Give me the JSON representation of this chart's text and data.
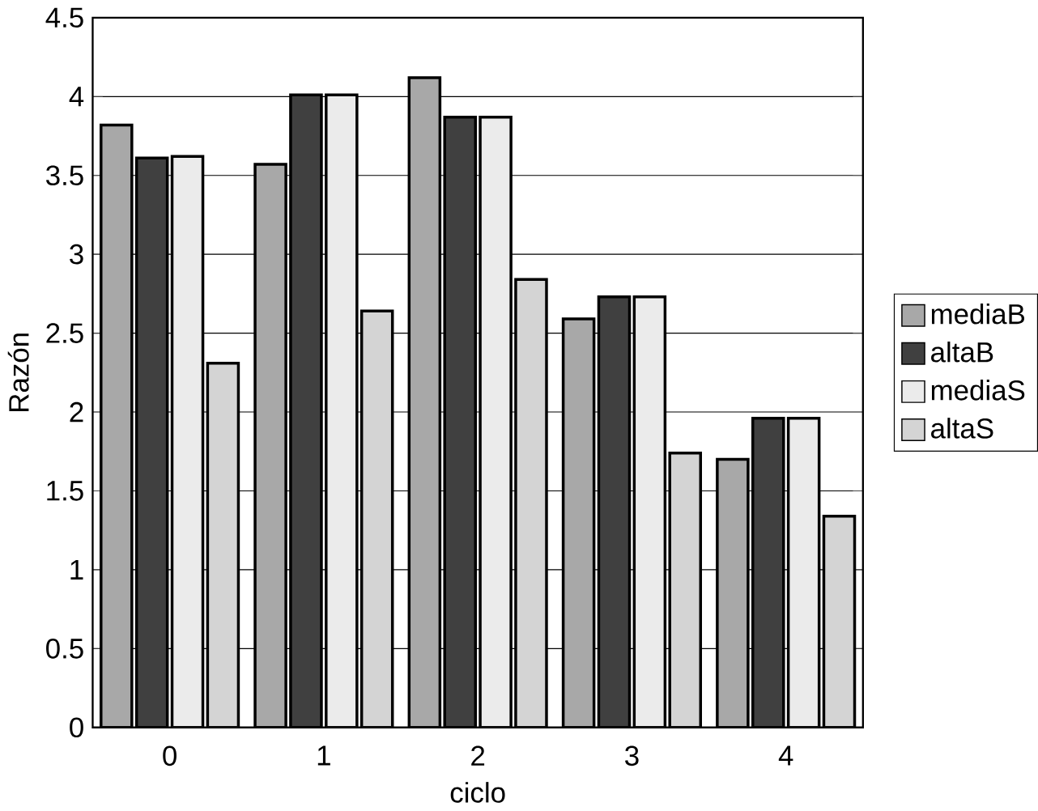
{
  "chart_data": {
    "type": "bar",
    "xlabel": "ciclo",
    "ylabel": "Razón",
    "categories": [
      "0",
      "1",
      "2",
      "3",
      "4"
    ],
    "series": [
      {
        "name": "mediaB",
        "color": "#a8a8a8",
        "values": [
          3.82,
          3.57,
          4.12,
          2.59,
          1.7
        ]
      },
      {
        "name": "altaB",
        "color": "#404040",
        "values": [
          3.61,
          4.01,
          3.87,
          2.73,
          1.96
        ]
      },
      {
        "name": "mediaS",
        "color": "#ebebeb",
        "values": [
          3.62,
          4.01,
          3.87,
          2.73,
          1.96
        ]
      },
      {
        "name": "altaS",
        "color": "#d4d4d4",
        "values": [
          2.31,
          2.64,
          2.84,
          1.74,
          1.34
        ]
      }
    ],
    "ylim": [
      0,
      4.5
    ],
    "yticks": [
      0,
      0.5,
      1,
      1.5,
      2,
      2.5,
      3,
      3.5,
      4,
      4.5
    ],
    "grid": "y",
    "legend": "right"
  }
}
